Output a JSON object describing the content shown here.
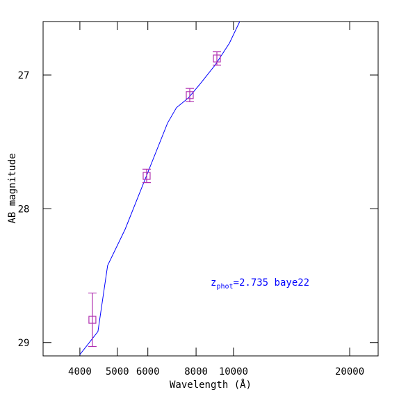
{
  "chart_data": {
    "type": "line",
    "xlabel": "Wavelength (Å)",
    "ylabel": "AB magnitude",
    "xscale": "log",
    "xlim": [
      3212,
      23700
    ],
    "xticks": [
      4000,
      5000,
      6000,
      8000,
      10000,
      20000
    ],
    "ylim": [
      29.1,
      26.6
    ],
    "yticks": [
      27,
      28,
      29
    ],
    "model": {
      "color": "#0000ff",
      "x": [
        4000,
        4455,
        4720,
        5238,
        6748,
        7115,
        7636,
        8160,
        8981,
        9762,
        10379
      ],
      "values": [
        29.09,
        28.918,
        28.424,
        28.154,
        27.359,
        27.244,
        27.172,
        27.073,
        26.922,
        26.761,
        26.6
      ]
    },
    "points": {
      "color": "#b030b0",
      "x": [
        4310,
        5957,
        7704,
        9057
      ],
      "values": [
        28.83,
        27.754,
        27.15,
        26.876
      ],
      "errors": [
        0.2,
        0.05,
        0.05,
        0.05
      ]
    },
    "annotation": {
      "color": "#0000ff",
      "main": "z",
      "sub": "phot",
      "rest": "=2.735 baye22"
    }
  }
}
